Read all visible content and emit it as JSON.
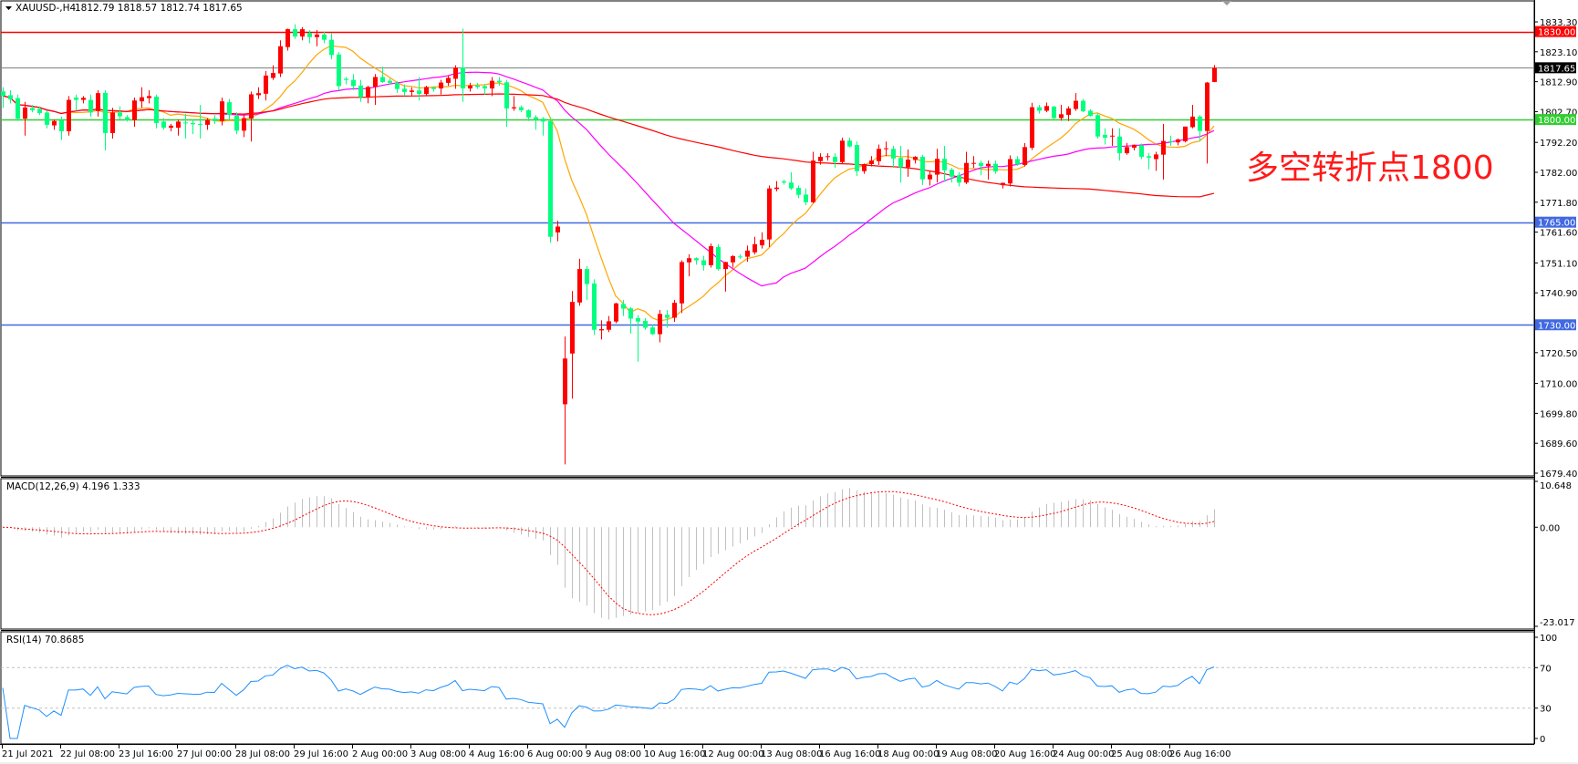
{
  "header": {
    "symbol": "XAUUSD-,H4",
    "ohlc_text": "1812.79 1818.57 1812.74 1817.65"
  },
  "annotation": {
    "text": "多空转折点1800",
    "color": "#ff1a1a"
  },
  "colors": {
    "bull": "#ff0000",
    "bear": "#00ff7f",
    "ma_fast": "#ffa500",
    "ma_mid": "#ff00ff",
    "ma_slow": "#ff0000",
    "macd_hist": "#c0c0c0",
    "macd_signal": "#ff0000",
    "rsi": "#1e90ff"
  },
  "chart_data": [
    {
      "type": "candlestick",
      "title": "XAUUSD-,H4",
      "timeframe": "H4",
      "ylim": [
        1679.4,
        1833.3
      ],
      "y_ticks": [
        "1833.30",
        "1823.10",
        "1812.90",
        "1802.70",
        "1792.20",
        "1782.00",
        "1771.80",
        "1761.60",
        "1751.10",
        "1740.90",
        "1720.50",
        "1710.00",
        "1699.80",
        "1689.60",
        "1679.40"
      ],
      "x_tick_labels": [
        "21 Jul 2021",
        "22 Jul 08:00",
        "23 Jul 16:00",
        "27 Jul 00:00",
        "28 Jul 08:00",
        "29 Jul 16:00",
        "2 Aug 00:00",
        "3 Aug 08:00",
        "4 Aug 16:00",
        "6 Aug 00:00",
        "9 Aug 08:00",
        "10 Aug 16:00",
        "12 Aug 00:00",
        "13 Aug 08:00",
        "16 Aug 16:00",
        "18 Aug 00:00",
        "19 Aug 08:00",
        "20 Aug 16:00",
        "24 Aug 00:00",
        "25 Aug 08:00",
        "26 Aug 16:00"
      ],
      "bars_per_x_tick": 8,
      "grid": false,
      "horizontal_lines": [
        {
          "price": "1830.00",
          "color": "#ff0000"
        },
        {
          "price": "1817.65",
          "color": "#808080",
          "tag_color": "#000000"
        },
        {
          "price": "1800.00",
          "color": "#32cd32"
        },
        {
          "price": "1765.00",
          "color": "#4169e1"
        },
        {
          "price": "1730.00",
          "color": "#4169e1"
        }
      ],
      "ohlc": [
        [
          1809.6,
          1811,
          1804,
          1808.1
        ],
        [
          1808.3,
          1810,
          1805.5,
          1806.9
        ],
        [
          1807.3,
          1808.5,
          1799.5,
          1800.3
        ],
        [
          1800.3,
          1806,
          1794.5,
          1804.1
        ],
        [
          1803.9,
          1805,
          1802.5,
          1803.2
        ],
        [
          1803.6,
          1804.5,
          1801.5,
          1802.2
        ],
        [
          1802.4,
          1803,
          1797,
          1798.2
        ],
        [
          1798,
          1800,
          1796.5,
          1799.5
        ],
        [
          1799.8,
          1801,
          1793,
          1796
        ],
        [
          1796,
          1808,
          1794.5,
          1806.7
        ],
        [
          1807.5,
          1808.5,
          1803,
          1806.7
        ],
        [
          1806.7,
          1808,
          1805.5,
          1807.4
        ],
        [
          1806.7,
          1808.5,
          1801,
          1802.4
        ],
        [
          1802.9,
          1810,
          1801,
          1809
        ],
        [
          1809.1,
          1810,
          1789.5,
          1795.4
        ],
        [
          1795.4,
          1804,
          1793.5,
          1802.4
        ],
        [
          1802.4,
          1804.5,
          1800,
          1801.1
        ],
        [
          1800.8,
          1801.5,
          1799.3,
          1799.8
        ],
        [
          1799.8,
          1807.5,
          1797.5,
          1806.5
        ],
        [
          1806.2,
          1811,
          1804,
          1807.6
        ],
        [
          1807.3,
          1810,
          1805.5,
          1808
        ],
        [
          1807.8,
          1808.5,
          1797,
          1798.8
        ],
        [
          1799.3,
          1800.5,
          1796.5,
          1797.2
        ],
        [
          1797.2,
          1798.5,
          1796,
          1797.9
        ],
        [
          1797.2,
          1800,
          1794.5,
          1799.3
        ],
        [
          1799,
          1802,
          1793.5,
          1798.8
        ],
        [
          1798.8,
          1800,
          1795,
          1798.4
        ],
        [
          1798.5,
          1805,
          1793.5,
          1798.3
        ],
        [
          1798.2,
          1800.5,
          1796.5,
          1799.8
        ],
        [
          1800.3,
          1801.5,
          1798.5,
          1799.5
        ],
        [
          1799.5,
          1807.5,
          1798,
          1806.2
        ],
        [
          1805.9,
          1807,
          1800,
          1801.6
        ],
        [
          1801.3,
          1802.5,
          1795,
          1796.2
        ],
        [
          1796.2,
          1802,
          1794,
          1800.5
        ],
        [
          1800.3,
          1809.5,
          1792.5,
          1808.6
        ],
        [
          1808.3,
          1811,
          1807,
          1809
        ],
        [
          1808.8,
          1816.5,
          1806.5,
          1815
        ],
        [
          1814.2,
          1818.5,
          1813.5,
          1815.9
        ],
        [
          1815.7,
          1827,
          1814.5,
          1825
        ],
        [
          1824.7,
          1831,
          1823.5,
          1830.8
        ],
        [
          1830.8,
          1832.5,
          1827.5,
          1828.3
        ],
        [
          1828.3,
          1831.5,
          1827,
          1830.8
        ],
        [
          1829.5,
          1830.5,
          1826,
          1828.1
        ],
        [
          1828.1,
          1830.5,
          1825,
          1829
        ],
        [
          1829,
          1830,
          1826,
          1827.2
        ],
        [
          1827.2,
          1829.5,
          1820.5,
          1822
        ],
        [
          1822.2,
          1823,
          1810,
          1811.4
        ],
        [
          1813.9,
          1814.5,
          1812,
          1813.5
        ],
        [
          1813.5,
          1815.5,
          1810,
          1811.4
        ],
        [
          1811.6,
          1813.5,
          1806,
          1807.6
        ],
        [
          1807.6,
          1811.5,
          1805.5,
          1811.1
        ],
        [
          1811.1,
          1815.5,
          1805,
          1814.5
        ],
        [
          1814.5,
          1818,
          1812.5,
          1812.8
        ],
        [
          1813.2,
          1814,
          1812,
          1812.5
        ],
        [
          1812.5,
          1813,
          1809,
          1810.4
        ],
        [
          1810.5,
          1812,
          1808,
          1809.4
        ],
        [
          1809.4,
          1811,
          1808,
          1809.9
        ],
        [
          1809.9,
          1814.5,
          1806.5,
          1808.7
        ],
        [
          1808.7,
          1811.5,
          1808,
          1811.1
        ],
        [
          1810.9,
          1811.3,
          1809.5,
          1810.4
        ],
        [
          1810.6,
          1813.5,
          1808.5,
          1812.6
        ],
        [
          1812.5,
          1815,
          1811.5,
          1814.2
        ],
        [
          1813.9,
          1818.5,
          1810.5,
          1817.7
        ],
        [
          1817.7,
          1831,
          1806,
          1810.6
        ],
        [
          1810.6,
          1812.5,
          1809.5,
          1811.6
        ],
        [
          1811.6,
          1812.5,
          1810.5,
          1811.1
        ],
        [
          1811.4,
          1812,
          1808.5,
          1810.6
        ],
        [
          1810.6,
          1814.5,
          1808,
          1813.2
        ],
        [
          1813.2,
          1814.5,
          1811.5,
          1812.7
        ],
        [
          1812.7,
          1813.5,
          1797.5,
          1803.8
        ],
        [
          1803.8,
          1808,
          1803,
          1804.2
        ],
        [
          1804.2,
          1804.8,
          1802.5,
          1803.2
        ],
        [
          1803.2,
          1803.5,
          1799.5,
          1800.7
        ],
        [
          1800.8,
          1801.5,
          1796.5,
          1800.1
        ],
        [
          1800.3,
          1800.8,
          1794.5,
          1799.3
        ],
        [
          1799.5,
          1800.8,
          1758,
          1760
        ],
        [
          1761.5,
          1765.5,
          1758.5,
          1763.5
        ],
        [
          1702.9,
          1726,
          1682.4,
          1718.5
        ],
        [
          1720.2,
          1741.5,
          1704.8,
          1737.8
        ],
        [
          1737.6,
          1752.5,
          1736.5,
          1749
        ],
        [
          1749,
          1750,
          1738.5,
          1743.9
        ],
        [
          1744.1,
          1745.5,
          1726.5,
          1728.3
        ],
        [
          1728.1,
          1731.5,
          1725,
          1728.5
        ],
        [
          1728.3,
          1733,
          1727.5,
          1731.2
        ],
        [
          1731.1,
          1737.5,
          1730.5,
          1737.3
        ],
        [
          1737.1,
          1738.5,
          1733,
          1735.5
        ],
        [
          1735.6,
          1736,
          1727,
          1732.1
        ],
        [
          1732.3,
          1733.3,
          1717.4,
          1731.1
        ],
        [
          1731.3,
          1732.3,
          1728.3,
          1729
        ],
        [
          1729.1,
          1730,
          1726.5,
          1726.8
        ],
        [
          1726.8,
          1735,
          1724,
          1733.7
        ],
        [
          1733.4,
          1735,
          1729,
          1732.4
        ],
        [
          1732.4,
          1738.5,
          1731,
          1737.5
        ],
        [
          1737.3,
          1752,
          1734,
          1751.4
        ],
        [
          1751.3,
          1754,
          1746.5,
          1752.7
        ],
        [
          1752.7,
          1753,
          1750.5,
          1752
        ],
        [
          1752,
          1753.5,
          1748.5,
          1750.3
        ],
        [
          1750.3,
          1757.7,
          1749.5,
          1756.8
        ],
        [
          1756.5,
          1757.5,
          1748.5,
          1749
        ],
        [
          1749,
          1751.5,
          1741.3,
          1751.4
        ],
        [
          1751.3,
          1753.8,
          1749.5,
          1753.4
        ],
        [
          1753.3,
          1754,
          1752.5,
          1753.2
        ],
        [
          1753.2,
          1757,
          1751.5,
          1755.3
        ],
        [
          1754.7,
          1760,
          1754,
          1757.5
        ],
        [
          1757.1,
          1761.5,
          1756,
          1759
        ],
        [
          1759.1,
          1777.5,
          1756.5,
          1776.5
        ],
        [
          1776.3,
          1779,
          1775.5,
          1776.8
        ],
        [
          1778.9,
          1779.5,
          1777.8,
          1778.5
        ],
        [
          1778.5,
          1782,
          1776,
          1776.5
        ],
        [
          1776.7,
          1777.5,
          1773.2,
          1774.3
        ],
        [
          1774.4,
          1776.5,
          1770.8,
          1771.8
        ],
        [
          1771.8,
          1789,
          1771.5,
          1786
        ],
        [
          1785.8,
          1788.5,
          1784.6,
          1787.3
        ],
        [
          1787.3,
          1788.5,
          1786,
          1787.5
        ],
        [
          1787.3,
          1788.5,
          1783.5,
          1785.5
        ],
        [
          1785.5,
          1793.8,
          1785,
          1792.8
        ],
        [
          1792.8,
          1793.8,
          1790.5,
          1790.8
        ],
        [
          1791.3,
          1792.5,
          1780.8,
          1782.4
        ],
        [
          1782.4,
          1785,
          1781.5,
          1784.8
        ],
        [
          1784.8,
          1787.5,
          1784,
          1786
        ],
        [
          1785.8,
          1791.5,
          1784.5,
          1790
        ],
        [
          1790,
          1792.5,
          1787.5,
          1790.2
        ],
        [
          1790,
          1791,
          1783.5,
          1786.7
        ],
        [
          1786.9,
          1791,
          1778.5,
          1783.7
        ],
        [
          1783.7,
          1789.8,
          1780.5,
          1786.3
        ],
        [
          1786.2,
          1787.5,
          1785,
          1787.3
        ],
        [
          1787.3,
          1788,
          1777.7,
          1779.6
        ],
        [
          1779.6,
          1782.5,
          1777.5,
          1781.2
        ],
        [
          1781.2,
          1790,
          1778.5,
          1786.6
        ],
        [
          1786.6,
          1791,
          1778.7,
          1782.7
        ],
        [
          1782.9,
          1783.5,
          1778.5,
          1780.5
        ],
        [
          1781,
          1782,
          1777.2,
          1778.5
        ],
        [
          1778.5,
          1789,
          1778,
          1785.2
        ],
        [
          1784.9,
          1787.5,
          1783.5,
          1785.2
        ],
        [
          1785.2,
          1786,
          1781,
          1784.1
        ],
        [
          1784.1,
          1786,
          1779.5,
          1784.9
        ],
        [
          1784.9,
          1786,
          1781.5,
          1782.3
        ],
        [
          1777.6,
          1778.5,
          1776.5,
          1778.4
        ],
        [
          1778.2,
          1787.8,
          1777.2,
          1786.5
        ],
        [
          1786.5,
          1787.5,
          1784.2,
          1784.7
        ],
        [
          1784.5,
          1792,
          1784,
          1790.6
        ],
        [
          1790.4,
          1805.7,
          1789.6,
          1804.2
        ],
        [
          1804.2,
          1805,
          1802,
          1803
        ],
        [
          1803,
          1805.8,
          1802.5,
          1804.6
        ],
        [
          1804.4,
          1804.6,
          1800.2,
          1800.5
        ],
        [
          1800.5,
          1805,
          1799.6,
          1801.8
        ],
        [
          1801.6,
          1804.5,
          1799.5,
          1803.8
        ],
        [
          1803.6,
          1809,
          1803,
          1806.4
        ],
        [
          1806.4,
          1807,
          1802.5,
          1802.8
        ],
        [
          1803,
          1803.5,
          1801,
          1801.2
        ],
        [
          1801.5,
          1802.3,
          1793.5,
          1794.2
        ],
        [
          1794.8,
          1797,
          1791.5,
          1793.8
        ],
        [
          1794.2,
          1797,
          1791,
          1794.5
        ],
        [
          1794.2,
          1797,
          1786,
          1788.5
        ],
        [
          1788.5,
          1792,
          1788,
          1790.6
        ],
        [
          1790.4,
          1791.5,
          1789.5,
          1791.4
        ],
        [
          1791.2,
          1791.8,
          1786.5,
          1787.3
        ],
        [
          1787.5,
          1788.5,
          1783,
          1787
        ],
        [
          1786.5,
          1789,
          1782.5,
          1788.1
        ],
        [
          1788,
          1798.5,
          1779.5,
          1792.7
        ],
        [
          1792.6,
          1794.5,
          1791,
          1792.3
        ],
        [
          1792.2,
          1793.5,
          1791.2,
          1793.2
        ],
        [
          1792.6,
          1797,
          1792.2,
          1797.6
        ],
        [
          1797.4,
          1805,
          1797,
          1801
        ],
        [
          1801,
          1801.5,
          1792.5,
          1796.1
        ],
        [
          1796.1,
          1812.8,
          1785,
          1812.6
        ],
        [
          1812.79,
          1818.57,
          1812.74,
          1817.65
        ]
      ]
    },
    {
      "type": "bar+line",
      "title": "MACD(12,26,9) 4.196 1.333",
      "label": "MACD(12,26,9)",
      "values_text": "4.196 1.333",
      "main": 4.196,
      "signal": 1.333,
      "ylim": [
        -23.017,
        10.648
      ],
      "y_ticks": [
        "10.648",
        "0.00",
        "-23.017"
      ]
    },
    {
      "type": "line",
      "title": "RSI(14) 70.8685",
      "label": "RSI(14)",
      "value_text": "70.8685",
      "value": 70.8685,
      "ylim": [
        0,
        100
      ],
      "levels": [
        30,
        70
      ],
      "y_ticks": [
        "100",
        "70",
        "30",
        "0"
      ]
    }
  ]
}
